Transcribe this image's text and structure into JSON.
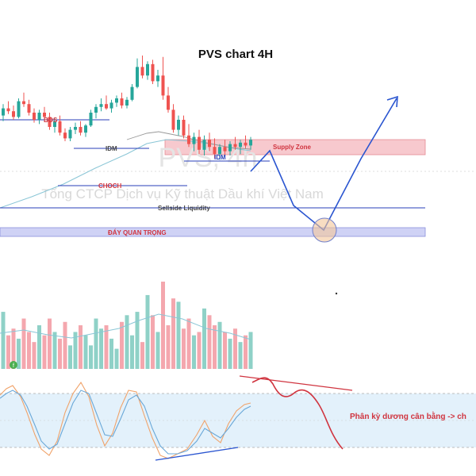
{
  "chart_data": {
    "type": "candlestick",
    "title": "PVS chart 4H",
    "watermark": {
      "symbol": "PVS, 4h",
      "company": "Tổng CTCP Dịch vụ Kỹ thuật Dầu khí Việt Nam"
    },
    "price_range": [
      0,
      100
    ],
    "candles": [
      {
        "o": 58,
        "h": 66,
        "l": 54,
        "c": 63
      },
      {
        "o": 63,
        "h": 68,
        "l": 59,
        "c": 61
      },
      {
        "o": 61,
        "h": 65,
        "l": 55,
        "c": 57
      },
      {
        "o": 57,
        "h": 70,
        "l": 56,
        "c": 68
      },
      {
        "o": 68,
        "h": 74,
        "l": 64,
        "c": 66
      },
      {
        "o": 66,
        "h": 69,
        "l": 58,
        "c": 60
      },
      {
        "o": 60,
        "h": 63,
        "l": 53,
        "c": 55
      },
      {
        "o": 55,
        "h": 62,
        "l": 52,
        "c": 60
      },
      {
        "o": 60,
        "h": 64,
        "l": 55,
        "c": 57
      },
      {
        "o": 57,
        "h": 60,
        "l": 48,
        "c": 50
      },
      {
        "o": 50,
        "h": 56,
        "l": 46,
        "c": 54
      },
      {
        "o": 54,
        "h": 58,
        "l": 44,
        "c": 46
      },
      {
        "o": 46,
        "h": 49,
        "l": 40,
        "c": 42
      },
      {
        "o": 42,
        "h": 50,
        "l": 40,
        "c": 48
      },
      {
        "o": 48,
        "h": 53,
        "l": 45,
        "c": 50
      },
      {
        "o": 50,
        "h": 54,
        "l": 44,
        "c": 46
      },
      {
        "o": 46,
        "h": 52,
        "l": 43,
        "c": 51
      },
      {
        "o": 51,
        "h": 62,
        "l": 50,
        "c": 60
      },
      {
        "o": 60,
        "h": 66,
        "l": 56,
        "c": 64
      },
      {
        "o": 64,
        "h": 70,
        "l": 61,
        "c": 66
      },
      {
        "o": 66,
        "h": 72,
        "l": 62,
        "c": 63
      },
      {
        "o": 63,
        "h": 69,
        "l": 60,
        "c": 67
      },
      {
        "o": 67,
        "h": 72,
        "l": 64,
        "c": 70
      },
      {
        "o": 70,
        "h": 74,
        "l": 63,
        "c": 65
      },
      {
        "o": 65,
        "h": 71,
        "l": 63,
        "c": 69
      },
      {
        "o": 69,
        "h": 80,
        "l": 68,
        "c": 78
      },
      {
        "o": 78,
        "h": 98,
        "l": 77,
        "c": 92
      },
      {
        "o": 92,
        "h": 100,
        "l": 84,
        "c": 86
      },
      {
        "o": 86,
        "h": 96,
        "l": 83,
        "c": 94
      },
      {
        "o": 94,
        "h": 97,
        "l": 80,
        "c": 82
      },
      {
        "o": 82,
        "h": 90,
        "l": 78,
        "c": 86
      },
      {
        "o": 86,
        "h": 99,
        "l": 69,
        "c": 72
      },
      {
        "o": 72,
        "h": 78,
        "l": 60,
        "c": 62
      },
      {
        "o": 62,
        "h": 66,
        "l": 46,
        "c": 48
      },
      {
        "o": 48,
        "h": 58,
        "l": 44,
        "c": 55
      },
      {
        "o": 55,
        "h": 58,
        "l": 42,
        "c": 44
      },
      {
        "o": 44,
        "h": 52,
        "l": 36,
        "c": 38
      },
      {
        "o": 38,
        "h": 46,
        "l": 33,
        "c": 43
      },
      {
        "o": 43,
        "h": 48,
        "l": 31,
        "c": 34
      },
      {
        "o": 34,
        "h": 44,
        "l": 30,
        "c": 41
      },
      {
        "o": 41,
        "h": 46,
        "l": 33,
        "c": 36
      },
      {
        "o": 36,
        "h": 42,
        "l": 28,
        "c": 31
      },
      {
        "o": 31,
        "h": 38,
        "l": 27,
        "c": 36
      },
      {
        "o": 36,
        "h": 41,
        "l": 30,
        "c": 33
      },
      {
        "o": 33,
        "h": 40,
        "l": 30,
        "c": 38
      },
      {
        "o": 38,
        "h": 43,
        "l": 34,
        "c": 36
      },
      {
        "o": 36,
        "h": 41,
        "l": 31,
        "c": 39
      },
      {
        "o": 39,
        "h": 44,
        "l": 35,
        "c": 37
      },
      {
        "o": 37,
        "h": 43,
        "l": 34,
        "c": 41
      }
    ],
    "volume": [
      34,
      20,
      24,
      18,
      30,
      22,
      16,
      26,
      20,
      30,
      22,
      18,
      28,
      14,
      22,
      26,
      20,
      14,
      30,
      24,
      26,
      18,
      12,
      28,
      32,
      20,
      34,
      16,
      44,
      32,
      22,
      52,
      26,
      42,
      40,
      24,
      30,
      20,
      22,
      36,
      32,
      26,
      28,
      22,
      18,
      24,
      16,
      20,
      22
    ],
    "projection_path": [
      [
        32,
        41
      ],
      [
        34,
        47
      ],
      [
        36,
        30
      ],
      [
        38,
        4
      ],
      [
        42,
        66
      ],
      [
        46,
        41
      ]
    ],
    "oscillator": {
      "upper_band": 80,
      "lower_band": 20,
      "annotation": "Phân kỳ dương cân bằng -> ch"
    },
    "annotations": {
      "bos": "BOS",
      "idm_left": "IDM",
      "idm_right": "IDM",
      "choch": "CHOCH",
      "supply_zone": "Supply Zone",
      "sellside_liquidity": "Sellside Liquidity",
      "key_bottom": "ĐÁY QUAN TRỌNG"
    },
    "colors": {
      "up": "#26a69a",
      "down": "#ef5350",
      "line": "#2a55d0",
      "zone_red": "#f7c9ce",
      "zone_blue": "#cfd2f5"
    }
  }
}
